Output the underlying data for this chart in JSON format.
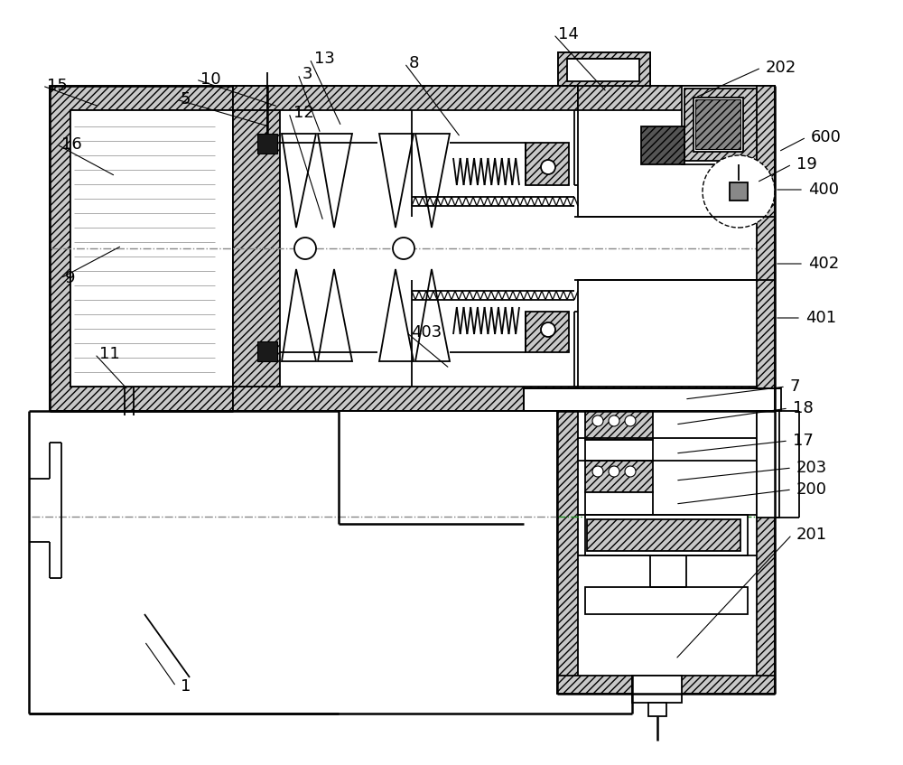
{
  "background": "#ffffff",
  "line_color": "#000000",
  "centerline_color": "#888888",
  "green_line_color": "#228B22",
  "figsize": [
    10.0,
    8.47
  ],
  "dpi": 100,
  "labels": [
    [
      "1",
      200,
      760
    ],
    [
      "3",
      335,
      82
    ],
    [
      "5",
      200,
      110
    ],
    [
      "7",
      875,
      428
    ],
    [
      "8",
      453,
      70
    ],
    [
      "9",
      72,
      308
    ],
    [
      "10",
      222,
      88
    ],
    [
      "11",
      110,
      392
    ],
    [
      "12",
      325,
      125
    ],
    [
      "13",
      348,
      65
    ],
    [
      "14",
      618,
      38
    ],
    [
      "15",
      52,
      95
    ],
    [
      "16",
      68,
      160
    ],
    [
      "17",
      878,
      488
    ],
    [
      "18",
      878,
      452
    ],
    [
      "19",
      882,
      182
    ],
    [
      "200",
      882,
      542
    ],
    [
      "201",
      882,
      592
    ],
    [
      "202",
      848,
      75
    ],
    [
      "203",
      882,
      518
    ],
    [
      "400",
      895,
      210
    ],
    [
      "401",
      892,
      352
    ],
    [
      "402",
      895,
      292
    ],
    [
      "403",
      455,
      368
    ],
    [
      "600",
      898,
      152
    ]
  ],
  "leader_lines": [
    [
      "1",
      200,
      760,
      160,
      710
    ],
    [
      "3",
      335,
      82,
      355,
      148
    ],
    [
      "5",
      200,
      110,
      298,
      140
    ],
    [
      "7",
      875,
      428,
      758,
      442
    ],
    [
      "8",
      453,
      70,
      510,
      152
    ],
    [
      "9",
      72,
      308,
      135,
      272
    ],
    [
      "10",
      222,
      88,
      308,
      118
    ],
    [
      "11",
      110,
      392,
      142,
      432
    ],
    [
      "12",
      325,
      125,
      358,
      245
    ],
    [
      "13",
      348,
      65,
      378,
      140
    ],
    [
      "14",
      618,
      38,
      672,
      102
    ],
    [
      "15",
      52,
      95,
      110,
      118
    ],
    [
      "16",
      68,
      160,
      128,
      195
    ],
    [
      "17",
      878,
      488,
      748,
      502
    ],
    [
      "18",
      878,
      452,
      748,
      470
    ],
    [
      "19",
      882,
      182,
      838,
      202
    ],
    [
      "200",
      882,
      542,
      748,
      558
    ],
    [
      "201",
      882,
      592,
      748,
      730
    ],
    [
      "202",
      848,
      75,
      770,
      108
    ],
    [
      "203",
      882,
      518,
      748,
      532
    ],
    [
      "400",
      895,
      210,
      858,
      210
    ],
    [
      "401",
      892,
      352,
      858,
      352
    ],
    [
      "402",
      895,
      292,
      858,
      292
    ],
    [
      "403",
      455,
      368,
      498,
      408
    ],
    [
      "600",
      898,
      152,
      862,
      168
    ]
  ]
}
